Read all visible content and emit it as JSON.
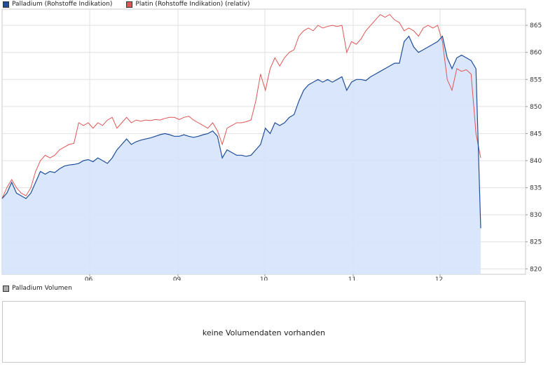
{
  "legend_top": [
    {
      "label": "Palladium (Rohstoffe Indikation)",
      "color": "#1f4e99"
    },
    {
      "label": "Platin (Rohstoffe Indikation) (relativ)",
      "color": "#e05555"
    }
  ],
  "legend_volume": {
    "label": "Palladium Volumen",
    "color": "#aaaaaa"
  },
  "volume_message": "keine Volumendaten vorhanden",
  "chart_data": {
    "type": "line",
    "x_ticks": [
      "06.",
      "09.",
      "10.",
      "11.",
      "12."
    ],
    "y_ticks": [
      820,
      825,
      830,
      835,
      840,
      845,
      850,
      855,
      860,
      865
    ],
    "ylim": [
      819,
      868
    ],
    "xlim": [
      0,
      100
    ],
    "grid": true,
    "y_axis_side": "right",
    "series": [
      {
        "name": "Palladium (Rohstoffe Indikation)",
        "color": "#1f4e99",
        "fill": "#d6e3fb",
        "points": [
          [
            0,
            833
          ],
          [
            1,
            834
          ],
          [
            2,
            836
          ],
          [
            3,
            834
          ],
          [
            4,
            833.5
          ],
          [
            5,
            833
          ],
          [
            6,
            834
          ],
          [
            7,
            836
          ],
          [
            8,
            838
          ],
          [
            9,
            837.5
          ],
          [
            10,
            838
          ],
          [
            11,
            837.8
          ],
          [
            12,
            838.5
          ],
          [
            13,
            839
          ],
          [
            14,
            839.2
          ],
          [
            15,
            839.3
          ],
          [
            16,
            839.5
          ],
          [
            17,
            840
          ],
          [
            18,
            840.2
          ],
          [
            19,
            839.8
          ],
          [
            20,
            840.5
          ],
          [
            21,
            840
          ],
          [
            22,
            839.5
          ],
          [
            23,
            840.5
          ],
          [
            24,
            842
          ],
          [
            25,
            843
          ],
          [
            26,
            844
          ],
          [
            27,
            843
          ],
          [
            28,
            843.5
          ],
          [
            29,
            843.8
          ],
          [
            30,
            844
          ],
          [
            31,
            844.2
          ],
          [
            32,
            844.5
          ],
          [
            33,
            844.8
          ],
          [
            34,
            845
          ],
          [
            35,
            844.8
          ],
          [
            36,
            844.5
          ],
          [
            37,
            844.5
          ],
          [
            38,
            844.8
          ],
          [
            39,
            844.5
          ],
          [
            40,
            844.3
          ],
          [
            41,
            844.5
          ],
          [
            42,
            844.8
          ],
          [
            43,
            845
          ],
          [
            44,
            845.5
          ],
          [
            45,
            844.5
          ],
          [
            46,
            840.5
          ],
          [
            47,
            842
          ],
          [
            48,
            841.5
          ],
          [
            49,
            841
          ],
          [
            50,
            841
          ],
          [
            51,
            840.8
          ],
          [
            52,
            841
          ],
          [
            53,
            842
          ],
          [
            54,
            843
          ],
          [
            55,
            846
          ],
          [
            56,
            845
          ],
          [
            57,
            847
          ],
          [
            58,
            846.5
          ],
          [
            59,
            847
          ],
          [
            60,
            848
          ],
          [
            61,
            848.5
          ],
          [
            62,
            851
          ],
          [
            63,
            853
          ],
          [
            64,
            854
          ],
          [
            65,
            854.5
          ],
          [
            66,
            855
          ],
          [
            67,
            854.5
          ],
          [
            68,
            855
          ],
          [
            69,
            854.5
          ],
          [
            70,
            855
          ],
          [
            71,
            855.5
          ],
          [
            72,
            853
          ],
          [
            73,
            854.5
          ],
          [
            74,
            855
          ],
          [
            75,
            855
          ],
          [
            76,
            854.8
          ],
          [
            77,
            855.5
          ],
          [
            78,
            856
          ],
          [
            79,
            856.5
          ],
          [
            80,
            857
          ],
          [
            81,
            857.5
          ],
          [
            82,
            858
          ],
          [
            83,
            858
          ],
          [
            84,
            862
          ],
          [
            85,
            863
          ],
          [
            86,
            861
          ],
          [
            87,
            860
          ],
          [
            88,
            860.5
          ],
          [
            89,
            861
          ],
          [
            90,
            861.5
          ],
          [
            91,
            862
          ],
          [
            92,
            863
          ],
          [
            93,
            859
          ],
          [
            94,
            857
          ],
          [
            95,
            859
          ],
          [
            96,
            859.5
          ],
          [
            97,
            859
          ],
          [
            98,
            858.5
          ],
          [
            99,
            857
          ],
          [
            100,
            827.5
          ]
        ]
      },
      {
        "name": "Platin (Rohstoffe Indikation) (relativ)",
        "color": "#e05555",
        "points": [
          [
            0,
            833
          ],
          [
            1,
            835
          ],
          [
            2,
            836.5
          ],
          [
            3,
            835
          ],
          [
            4,
            834
          ],
          [
            5,
            833.5
          ],
          [
            6,
            835
          ],
          [
            7,
            838
          ],
          [
            8,
            840
          ],
          [
            9,
            841
          ],
          [
            10,
            840.5
          ],
          [
            11,
            841
          ],
          [
            12,
            842
          ],
          [
            13,
            842.5
          ],
          [
            14,
            843
          ],
          [
            15,
            843.2
          ],
          [
            16,
            847
          ],
          [
            17,
            846.5
          ],
          [
            18,
            847
          ],
          [
            19,
            846
          ],
          [
            20,
            847
          ],
          [
            21,
            846.5
          ],
          [
            22,
            847.5
          ],
          [
            23,
            848
          ],
          [
            24,
            846
          ],
          [
            25,
            847
          ],
          [
            26,
            848
          ],
          [
            27,
            847
          ],
          [
            28,
            847.5
          ],
          [
            29,
            847.3
          ],
          [
            30,
            847.5
          ],
          [
            31,
            847.4
          ],
          [
            32,
            847.6
          ],
          [
            33,
            847.5
          ],
          [
            34,
            847.8
          ],
          [
            35,
            848
          ],
          [
            36,
            848
          ],
          [
            37,
            847.6
          ],
          [
            38,
            848
          ],
          [
            39,
            848.2
          ],
          [
            40,
            847.5
          ],
          [
            41,
            847
          ],
          [
            42,
            846.5
          ],
          [
            43,
            846
          ],
          [
            44,
            847
          ],
          [
            45,
            845.5
          ],
          [
            46,
            843
          ],
          [
            47,
            846
          ],
          [
            48,
            846.5
          ],
          [
            49,
            847
          ],
          [
            50,
            847
          ],
          [
            51,
            847.2
          ],
          [
            52,
            847.5
          ],
          [
            53,
            851
          ],
          [
            54,
            856
          ],
          [
            55,
            853
          ],
          [
            56,
            857
          ],
          [
            57,
            859
          ],
          [
            58,
            857.5
          ],
          [
            59,
            859
          ],
          [
            60,
            860
          ],
          [
            61,
            860.5
          ],
          [
            62,
            863
          ],
          [
            63,
            864
          ],
          [
            64,
            864.5
          ],
          [
            65,
            864
          ],
          [
            66,
            865
          ],
          [
            67,
            864.5
          ],
          [
            68,
            864.8
          ],
          [
            69,
            865
          ],
          [
            70,
            864.8
          ],
          [
            71,
            865
          ],
          [
            72,
            860
          ],
          [
            73,
            862
          ],
          [
            74,
            861.5
          ],
          [
            75,
            862.5
          ],
          [
            76,
            864
          ],
          [
            77,
            865
          ],
          [
            78,
            866
          ],
          [
            79,
            867
          ],
          [
            80,
            866.5
          ],
          [
            81,
            867
          ],
          [
            82,
            866
          ],
          [
            83,
            865.5
          ],
          [
            84,
            864
          ],
          [
            85,
            864.5
          ],
          [
            86,
            864
          ],
          [
            87,
            863
          ],
          [
            88,
            864.5
          ],
          [
            89,
            865
          ],
          [
            90,
            864.5
          ],
          [
            91,
            865
          ],
          [
            92,
            862
          ],
          [
            93,
            855
          ],
          [
            94,
            853
          ],
          [
            95,
            857
          ],
          [
            96,
            856.5
          ],
          [
            97,
            856.8
          ],
          [
            98,
            856
          ],
          [
            99,
            845
          ],
          [
            100,
            840.5
          ]
        ]
      }
    ]
  }
}
